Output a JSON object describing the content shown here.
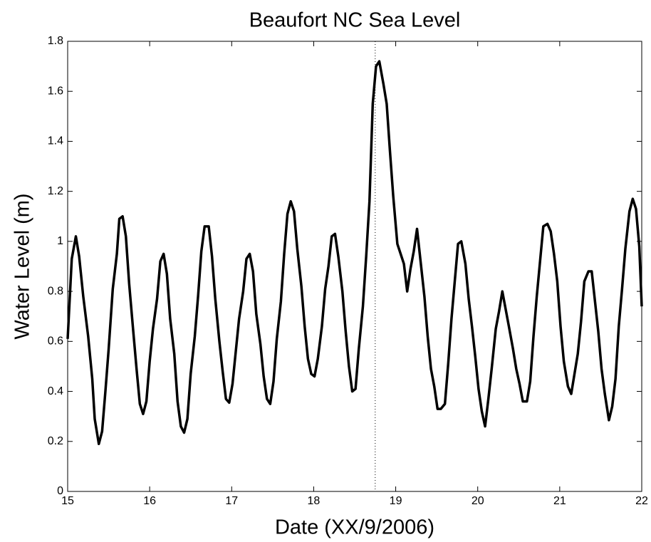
{
  "chart_data": {
    "type": "line",
    "title": "Beaufort NC Sea Level",
    "xlabel": "Date (XX/9/2006)",
    "ylabel": "Water Level (m)",
    "xlim": [
      15,
      22
    ],
    "xticks": [
      15,
      16,
      17,
      18,
      19,
      20,
      21,
      22
    ],
    "ylim": [
      0,
      1.8
    ],
    "yticks": [
      0,
      0.2,
      0.4,
      0.6,
      0.8,
      1,
      1.2,
      1.4,
      1.6,
      1.8
    ],
    "vline": 18.75,
    "color": "#000000",
    "x": [
      15.0,
      15.05,
      15.1,
      15.14,
      15.19,
      15.25,
      15.3,
      15.33,
      15.38,
      15.42,
      15.46,
      15.5,
      15.55,
      15.6,
      15.63,
      15.67,
      15.71,
      15.75,
      15.8,
      15.84,
      15.88,
      15.92,
      15.96,
      16.0,
      16.04,
      16.09,
      16.13,
      16.17,
      16.21,
      16.25,
      16.3,
      16.34,
      16.38,
      16.42,
      16.46,
      16.5,
      16.55,
      16.59,
      16.63,
      16.67,
      16.72,
      16.76,
      16.8,
      16.85,
      16.89,
      16.93,
      16.97,
      17.01,
      17.05,
      17.09,
      17.14,
      17.18,
      17.22,
      17.26,
      17.3,
      17.35,
      17.39,
      17.43,
      17.47,
      17.51,
      17.55,
      17.6,
      17.64,
      17.68,
      17.72,
      17.76,
      17.8,
      17.85,
      17.89,
      17.93,
      17.97,
      18.01,
      18.05,
      18.1,
      18.14,
      18.18,
      18.22,
      18.26,
      18.3,
      18.35,
      18.39,
      18.43,
      18.47,
      18.51,
      18.55,
      18.6,
      18.64,
      18.68,
      18.72,
      18.76,
      18.8,
      18.85,
      18.89,
      18.93,
      18.97,
      19.02,
      19.06,
      19.1,
      19.14,
      19.18,
      19.22,
      19.26,
      19.3,
      19.35,
      19.39,
      19.43,
      19.47,
      19.51,
      19.55,
      19.6,
      19.64,
      19.68,
      19.72,
      19.76,
      19.8,
      19.85,
      19.89,
      19.93,
      19.97,
      20.01,
      20.05,
      20.09,
      20.13,
      20.17,
      20.22,
      20.26,
      20.3,
      20.34,
      20.38,
      20.43,
      20.47,
      20.51,
      20.55,
      20.6,
      20.64,
      20.68,
      20.72,
      20.76,
      20.8,
      20.85,
      20.89,
      20.93,
      20.97,
      21.01,
      21.05,
      21.1,
      21.14,
      21.18,
      21.22,
      21.26,
      21.3,
      21.35,
      21.39,
      21.43,
      21.47,
      21.51,
      21.55,
      21.6,
      21.64,
      21.68,
      21.72,
      21.76,
      21.8,
      21.85,
      21.89,
      21.93,
      21.97,
      22.0
    ],
    "values": [
      0.61,
      0.93,
      1.02,
      0.94,
      0.78,
      0.62,
      0.45,
      0.29,
      0.19,
      0.24,
      0.4,
      0.57,
      0.81,
      0.95,
      1.09,
      1.1,
      1.02,
      0.83,
      0.64,
      0.49,
      0.35,
      0.31,
      0.36,
      0.52,
      0.65,
      0.77,
      0.92,
      0.95,
      0.87,
      0.69,
      0.55,
      0.36,
      0.26,
      0.235,
      0.29,
      0.47,
      0.62,
      0.78,
      0.96,
      1.06,
      1.06,
      0.94,
      0.77,
      0.6,
      0.48,
      0.37,
      0.355,
      0.43,
      0.56,
      0.69,
      0.8,
      0.93,
      0.95,
      0.88,
      0.71,
      0.59,
      0.46,
      0.37,
      0.35,
      0.44,
      0.61,
      0.76,
      0.95,
      1.11,
      1.16,
      1.12,
      0.97,
      0.82,
      0.66,
      0.53,
      0.47,
      0.46,
      0.53,
      0.66,
      0.81,
      0.9,
      1.02,
      1.03,
      0.94,
      0.8,
      0.64,
      0.5,
      0.4,
      0.41,
      0.57,
      0.74,
      0.94,
      1.16,
      1.55,
      1.7,
      1.72,
      1.63,
      1.55,
      1.36,
      1.18,
      0.99,
      0.95,
      0.91,
      0.8,
      0.89,
      0.96,
      1.05,
      0.93,
      0.78,
      0.62,
      0.49,
      0.42,
      0.33,
      0.33,
      0.35,
      0.51,
      0.69,
      0.84,
      0.99,
      1.0,
      0.91,
      0.77,
      0.66,
      0.54,
      0.41,
      0.32,
      0.26,
      0.37,
      0.49,
      0.65,
      0.72,
      0.8,
      0.73,
      0.66,
      0.57,
      0.49,
      0.43,
      0.36,
      0.36,
      0.44,
      0.62,
      0.78,
      0.92,
      1.06,
      1.07,
      1.04,
      0.95,
      0.84,
      0.66,
      0.52,
      0.42,
      0.39,
      0.47,
      0.55,
      0.68,
      0.84,
      0.88,
      0.88,
      0.76,
      0.64,
      0.49,
      0.39,
      0.285,
      0.34,
      0.45,
      0.66,
      0.81,
      0.97,
      1.12,
      1.17,
      1.13,
      0.98,
      0.74
    ]
  }
}
